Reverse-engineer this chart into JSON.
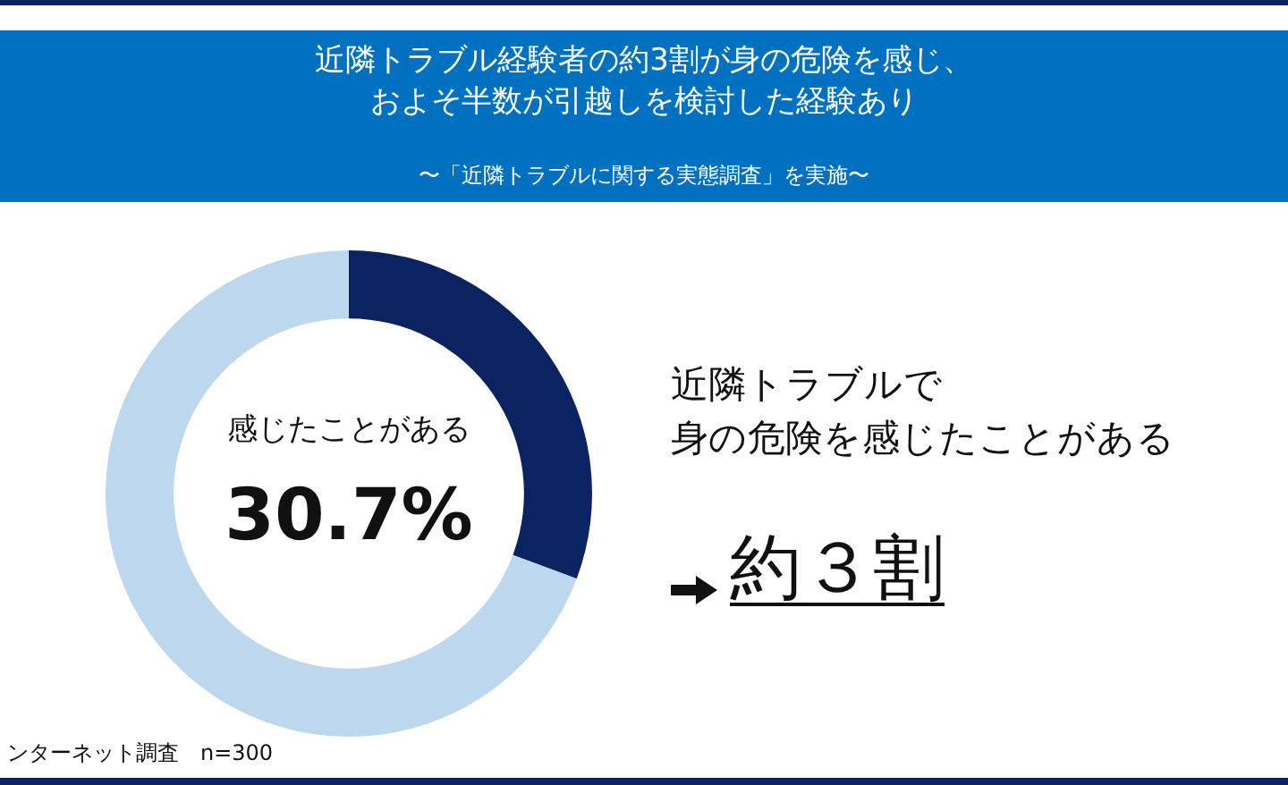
{
  "chart_data": {
    "type": "donut",
    "title": "近隣トラブル経験者の約3割が身の危険を感じ、およそ半数が引越しを検討した経験あり",
    "subtitle": "〜「近隣トラブルに関する実態調査」を実施〜",
    "categories": [
      "感じたことがある",
      null
    ],
    "values": [
      30.7,
      69.3
    ],
    "colors": [
      "#0b2461",
      "#bdd7ee"
    ],
    "value_labels": [
      "30.7%",
      null
    ],
    "legend": false,
    "annotations": [
      "近隣トラブルで",
      "身の危険を感じたことがある",
      "約３割",
      "ンターネット調査　n=300"
    ]
  }
}
